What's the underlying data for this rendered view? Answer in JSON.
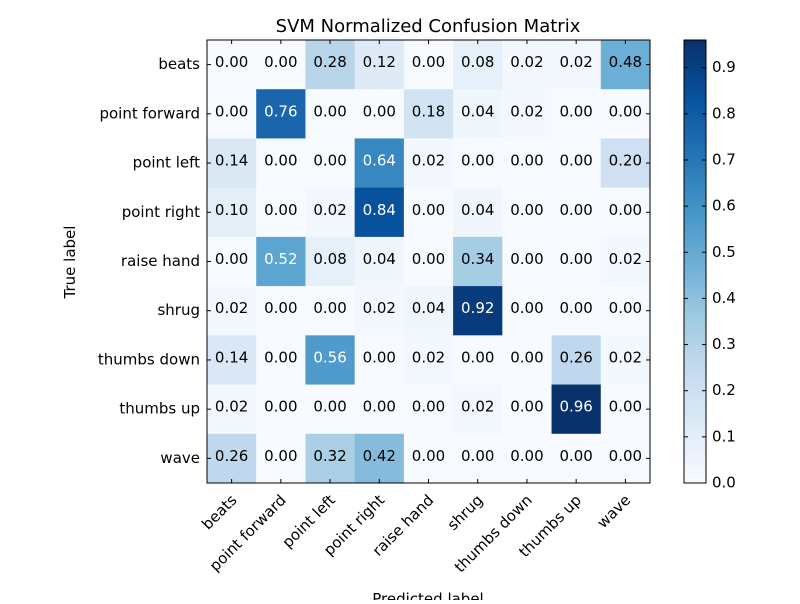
{
  "chart_data": {
    "type": "heatmap",
    "title": "SVM Normalized Confusion Matrix",
    "xlabel": "Predicted label",
    "ylabel": "True label",
    "x_categories": [
      "beats",
      "point forward",
      "point left",
      "point right",
      "raise hand",
      "shrug",
      "thumbs down",
      "thumbs up",
      "wave"
    ],
    "y_categories": [
      "beats",
      "point forward",
      "point left",
      "point right",
      "raise hand",
      "shrug",
      "thumbs down",
      "thumbs up",
      "wave"
    ],
    "values": [
      [
        0.0,
        0.0,
        0.28,
        0.12,
        0.0,
        0.08,
        0.02,
        0.02,
        0.48
      ],
      [
        0.0,
        0.76,
        0.0,
        0.0,
        0.18,
        0.04,
        0.02,
        0.0,
        0.0
      ],
      [
        0.14,
        0.0,
        0.0,
        0.64,
        0.02,
        0.0,
        0.0,
        0.0,
        0.2
      ],
      [
        0.1,
        0.0,
        0.02,
        0.84,
        0.0,
        0.04,
        0.0,
        0.0,
        0.0
      ],
      [
        0.0,
        0.52,
        0.08,
        0.04,
        0.0,
        0.34,
        0.0,
        0.0,
        0.02
      ],
      [
        0.02,
        0.0,
        0.0,
        0.02,
        0.04,
        0.92,
        0.0,
        0.0,
        0.0
      ],
      [
        0.14,
        0.0,
        0.56,
        0.0,
        0.02,
        0.0,
        0.0,
        0.26,
        0.02
      ],
      [
        0.02,
        0.0,
        0.0,
        0.0,
        0.0,
        0.02,
        0.0,
        0.96,
        0.0
      ],
      [
        0.26,
        0.0,
        0.32,
        0.42,
        0.0,
        0.0,
        0.0,
        0.0,
        0.0
      ]
    ],
    "colormap": "Blues",
    "colormap_stops": [
      "#f7fbff",
      "#deebf7",
      "#c6dbef",
      "#9ecae1",
      "#6baed6",
      "#4292c6",
      "#2171b5",
      "#08519c",
      "#08306b"
    ],
    "color_range": [
      0.0,
      0.96
    ],
    "colorbar_ticks": [
      "0.0",
      "0.1",
      "0.2",
      "0.3",
      "0.4",
      "0.5",
      "0.6",
      "0.7",
      "0.8",
      "0.9"
    ],
    "text_color_dark": "#000000",
    "text_color_light": "#ffffff",
    "grid": false
  }
}
